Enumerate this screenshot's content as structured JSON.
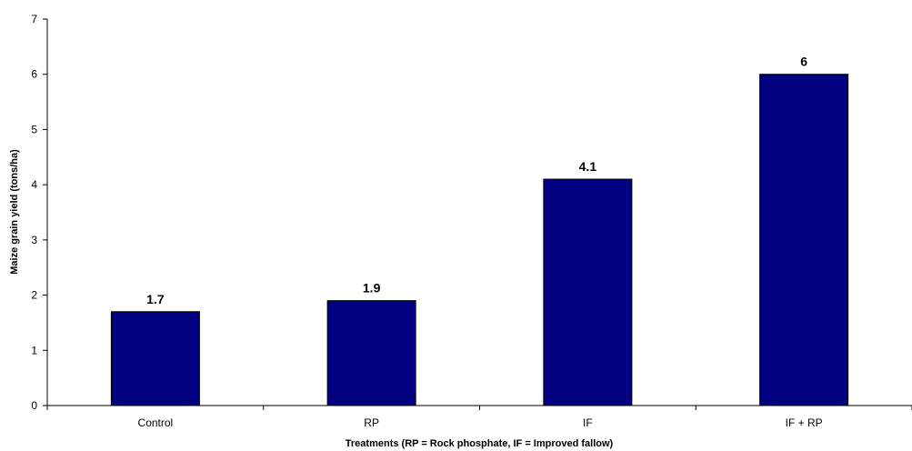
{
  "chart_data": {
    "type": "bar",
    "categories": [
      "Control",
      "RP",
      "IF",
      "IF + RP"
    ],
    "values": [
      1.7,
      1.9,
      4.1,
      6
    ],
    "value_labels": [
      "1.7",
      "1.9",
      "4.1",
      "6"
    ],
    "xlabel": "Treatments (RP = Rock phosphate, IF = Improved fallow)",
    "ylabel": "Maize grain yield (tons/ha)",
    "ylim": [
      0,
      7
    ],
    "yticks": [
      "0",
      "1",
      "2",
      "3",
      "4",
      "5",
      "6",
      "7"
    ],
    "grid": false,
    "legend": "none",
    "bar_color": "#000080"
  }
}
